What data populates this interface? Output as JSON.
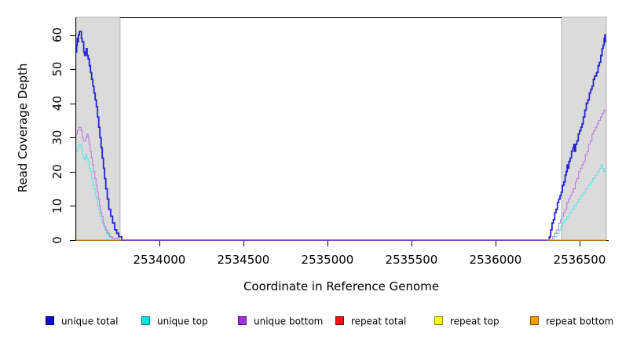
{
  "chart_data": {
    "type": "line",
    "step": true,
    "title": "",
    "xlabel": "Coordinate in Reference Genome",
    "ylabel": "Read Coverage Depth",
    "xlim": [
      2533505,
      2536659
    ],
    "ylim": [
      0,
      65
    ],
    "x_ticks": [
      2534000,
      2534500,
      2535000,
      2535500,
      2536000,
      2536500
    ],
    "x_tick_labels": [
      "2534000",
      "2534500",
      "2535000",
      "2535500",
      "2536000",
      "2536500"
    ],
    "y_ticks": [
      0,
      10,
      20,
      30,
      40,
      50,
      60
    ],
    "y_tick_labels": [
      "0",
      "10",
      "20",
      "30",
      "40",
      "50",
      "60"
    ],
    "grid": false,
    "shaded_regions": [
      {
        "start": 2533505,
        "end": 2533766,
        "fill": "#dbdbdb",
        "stroke": "#b0b0b0"
      },
      {
        "start": 2536393,
        "end": 2536659,
        "fill": "#dbdbdb",
        "stroke": "#b0b0b0"
      }
    ],
    "series": [
      {
        "name": "unique total",
        "color": "#2323cd",
        "line_width": 1.8,
        "segments": [
          [
            [
              2533505,
              55
            ],
            [
              2533508,
              57
            ],
            [
              2533511,
              59
            ],
            [
              2533514,
              58
            ],
            [
              2533518,
              60
            ],
            [
              2533524,
              61
            ],
            [
              2533532,
              61
            ],
            [
              2533536,
              59
            ],
            [
              2533540,
              58
            ],
            [
              2533546,
              58
            ],
            [
              2533550,
              55
            ],
            [
              2533555,
              54
            ],
            [
              2533560,
              55
            ],
            [
              2533565,
              56
            ],
            [
              2533570,
              54
            ],
            [
              2533576,
              53
            ],
            [
              2533583,
              51
            ],
            [
              2533590,
              49
            ],
            [
              2533597,
              47
            ],
            [
              2533604,
              45
            ],
            [
              2533611,
              43
            ],
            [
              2533618,
              41
            ],
            [
              2533625,
              39
            ],
            [
              2533632,
              36
            ],
            [
              2533639,
              33
            ],
            [
              2533646,
              30
            ],
            [
              2533653,
              27
            ],
            [
              2533660,
              24
            ],
            [
              2533667,
              21
            ],
            [
              2533674,
              18
            ],
            [
              2533681,
              15
            ],
            [
              2533690,
              12
            ],
            [
              2533699,
              9
            ],
            [
              2533710,
              7
            ],
            [
              2533722,
              5
            ],
            [
              2533734,
              3
            ],
            [
              2533746,
              2
            ],
            [
              2533758,
              1
            ],
            [
              2533776,
              0
            ],
            [
              2536312,
              0
            ],
            [
              2536320,
              1
            ],
            [
              2536328,
              3
            ],
            [
              2536336,
              5
            ],
            [
              2536344,
              6
            ],
            [
              2536352,
              8
            ],
            [
              2536360,
              9
            ],
            [
              2536368,
              11
            ],
            [
              2536376,
              12
            ],
            [
              2536384,
              13
            ],
            [
              2536391,
              14
            ],
            [
              2536398,
              16
            ],
            [
              2536406,
              17
            ],
            [
              2536414,
              19
            ],
            [
              2536420,
              20
            ],
            [
              2536426,
              22
            ],
            [
              2536431,
              21
            ],
            [
              2536436,
              23
            ],
            [
              2536444,
              24
            ],
            [
              2536452,
              26
            ],
            [
              2536461,
              27
            ],
            [
              2536466,
              28
            ],
            [
              2536471,
              26
            ],
            [
              2536477,
              28
            ],
            [
              2536484,
              29
            ],
            [
              2536492,
              31
            ],
            [
              2536500,
              32
            ],
            [
              2536508,
              33
            ],
            [
              2536515,
              34
            ],
            [
              2536522,
              36
            ],
            [
              2536531,
              38
            ],
            [
              2536540,
              40
            ],
            [
              2536549,
              41
            ],
            [
              2536558,
              43
            ],
            [
              2536566,
              44
            ],
            [
              2536574,
              45
            ],
            [
              2536582,
              47
            ],
            [
              2536590,
              48
            ],
            [
              2536601,
              49
            ],
            [
              2536610,
              51
            ],
            [
              2536618,
              52
            ],
            [
              2536626,
              54
            ],
            [
              2536634,
              56
            ],
            [
              2536640,
              57
            ],
            [
              2536646,
              59
            ],
            [
              2536650,
              60
            ],
            [
              2536653,
              58
            ],
            [
              2536659,
              58
            ]
          ]
        ]
      },
      {
        "name": "unique top",
        "color": "#63e3e3",
        "line_width": 1.1,
        "segments": [
          [
            [
              2533505,
              26
            ],
            [
              2533512,
              27
            ],
            [
              2533519,
              28
            ],
            [
              2533527,
              28
            ],
            [
              2533534,
              27
            ],
            [
              2533541,
              25
            ],
            [
              2533548,
              24
            ],
            [
              2533555,
              23.5
            ],
            [
              2533562,
              25
            ],
            [
              2533569,
              24
            ],
            [
              2533576,
              23
            ],
            [
              2533583,
              21
            ],
            [
              2533590,
              20
            ],
            [
              2533597,
              18
            ],
            [
              2533604,
              16
            ],
            [
              2533611,
              15
            ],
            [
              2533618,
              13
            ],
            [
              2533625,
              12
            ],
            [
              2533632,
              10
            ],
            [
              2533639,
              9
            ],
            [
              2533646,
              7
            ],
            [
              2533653,
              6
            ],
            [
              2533660,
              5
            ],
            [
              2533668,
              4
            ],
            [
              2533677,
              3
            ],
            [
              2533686,
              2
            ],
            [
              2533697,
              1
            ],
            [
              2533712,
              0.5
            ],
            [
              2533743,
              0
            ],
            [
              2536340,
              0
            ],
            [
              2536352,
              1
            ],
            [
              2536366,
              2
            ],
            [
              2536378,
              3
            ],
            [
              2536388,
              4
            ],
            [
              2536398,
              5
            ],
            [
              2536410,
              6
            ],
            [
              2536424,
              7
            ],
            [
              2536438,
              8
            ],
            [
              2536452,
              9
            ],
            [
              2536466,
              10
            ],
            [
              2536480,
              11
            ],
            [
              2536494,
              12
            ],
            [
              2536508,
              13
            ],
            [
              2536522,
              14
            ],
            [
              2536536,
              15
            ],
            [
              2536550,
              16
            ],
            [
              2536564,
              17
            ],
            [
              2536578,
              18
            ],
            [
              2536592,
              19
            ],
            [
              2536606,
              20
            ],
            [
              2536618,
              21
            ],
            [
              2536628,
              22
            ],
            [
              2536636,
              21
            ],
            [
              2536642,
              20
            ],
            [
              2536650,
              21
            ],
            [
              2536659,
              21
            ]
          ]
        ]
      },
      {
        "name": "unique bottom",
        "color": "#bd7cdf",
        "line_width": 1.1,
        "segments": [
          [
            [
              2533505,
              31
            ],
            [
              2533512,
              32
            ],
            [
              2533519,
              33
            ],
            [
              2533527,
              33
            ],
            [
              2533534,
              32
            ],
            [
              2533541,
              30
            ],
            [
              2533548,
              29
            ],
            [
              2533555,
              29
            ],
            [
              2533562,
              30
            ],
            [
              2533569,
              31
            ],
            [
              2533576,
              30
            ],
            [
              2533581,
              28
            ],
            [
              2533588,
              26
            ],
            [
              2533595,
              24
            ],
            [
              2533602,
              22
            ],
            [
              2533609,
              20
            ],
            [
              2533616,
              18
            ],
            [
              2533623,
              16
            ],
            [
              2533630,
              14
            ],
            [
              2533637,
              12
            ],
            [
              2533644,
              10
            ],
            [
              2533651,
              8
            ],
            [
              2533658,
              7
            ],
            [
              2533665,
              5
            ],
            [
              2533672,
              4
            ],
            [
              2533681,
              3
            ],
            [
              2533691,
              2
            ],
            [
              2533703,
              1
            ],
            [
              2533721,
              0.5
            ],
            [
              2533752,
              0
            ],
            [
              2536330,
              0
            ],
            [
              2536340,
              1
            ],
            [
              2536352,
              2
            ],
            [
              2536364,
              3
            ],
            [
              2536376,
              5
            ],
            [
              2536386,
              6
            ],
            [
              2536394,
              7
            ],
            [
              2536404,
              8
            ],
            [
              2536414,
              9
            ],
            [
              2536424,
              11
            ],
            [
              2536434,
              12
            ],
            [
              2536444,
              13
            ],
            [
              2536454,
              14
            ],
            [
              2536464,
              15
            ],
            [
              2536474,
              17
            ],
            [
              2536484,
              18
            ],
            [
              2536494,
              20
            ],
            [
              2536504,
              21
            ],
            [
              2536514,
              22
            ],
            [
              2536524,
              23
            ],
            [
              2536534,
              25
            ],
            [
              2536544,
              26
            ],
            [
              2536554,
              28
            ],
            [
              2536564,
              29
            ],
            [
              2536574,
              31
            ],
            [
              2536584,
              32
            ],
            [
              2536594,
              33
            ],
            [
              2536604,
              34
            ],
            [
              2536614,
              35
            ],
            [
              2536624,
              36
            ],
            [
              2536634,
              37
            ],
            [
              2536644,
              38
            ],
            [
              2536652,
              38
            ],
            [
              2536659,
              37.5
            ]
          ]
        ]
      },
      {
        "name": "repeat total",
        "color": "#cc2222",
        "line_width": 1.1,
        "segments": [
          [
            [
              2533505,
              0
            ],
            [
              2533772,
              0
            ]
          ],
          [
            [
              2536308,
              0
            ],
            [
              2536659,
              0
            ]
          ]
        ]
      },
      {
        "name": "repeat top",
        "color": "#e8e84a",
        "line_width": 1.1,
        "segments": [
          [
            [
              2533505,
              0
            ],
            [
              2533772,
              0
            ]
          ],
          [
            [
              2536308,
              0
            ],
            [
              2536659,
              0
            ]
          ]
        ]
      },
      {
        "name": "repeat bottom",
        "color": "#ff9d1e",
        "line_width": 1.4,
        "segments": [
          [
            [
              2533505,
              0
            ],
            [
              2533772,
              0
            ]
          ],
          [
            [
              2536308,
              0
            ],
            [
              2536659,
              0
            ]
          ]
        ]
      }
    ],
    "legend": {
      "position": "bottom",
      "items": [
        {
          "label": "unique total",
          "fill": "#0d0dcf",
          "border": "#00006e"
        },
        {
          "label": "unique top",
          "fill": "#00e1e1",
          "border": "#0a8a8a"
        },
        {
          "label": "unique bottom",
          "fill": "#a12fd6",
          "border": "#5c0f85"
        },
        {
          "label": "repeat total",
          "fill": "#ee1111",
          "border": "#7e0808"
        },
        {
          "label": "repeat top",
          "fill": "#f5f517",
          "border": "#8f8f07"
        },
        {
          "label": "repeat bottom",
          "fill": "#f79b07",
          "border": "#8a5503"
        }
      ]
    }
  }
}
